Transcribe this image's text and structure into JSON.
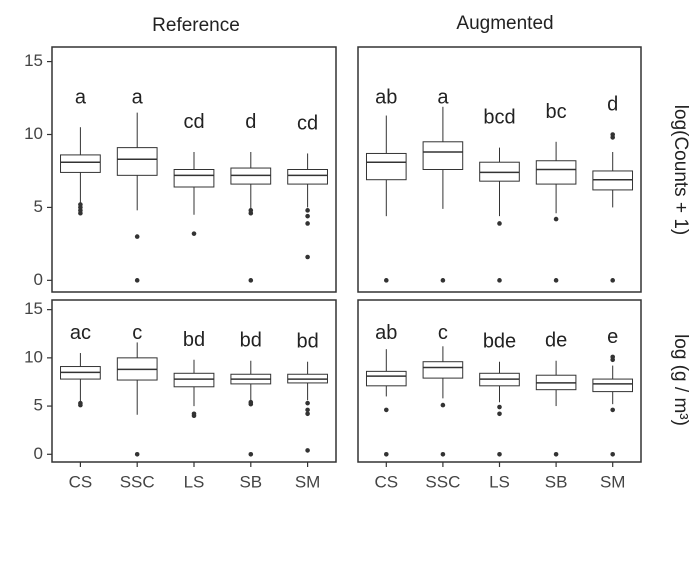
{
  "chart_data": {
    "type": "box",
    "columns": [
      "Reference",
      "Augmented"
    ],
    "rows": [
      "log(Counts + 1)",
      "log (g / m³)"
    ],
    "categories": [
      "CS",
      "SSC",
      "LS",
      "SB",
      "SM"
    ],
    "ylim": [
      -0.8,
      16
    ],
    "yticks": [
      0,
      5,
      10,
      15
    ],
    "color": "#333333",
    "panels": [
      {
        "row": 0,
        "col": 0,
        "boxes": [
          {
            "min": 5.3,
            "q1": 7.4,
            "median": 8.1,
            "q3": 8.6,
            "max": 10.5,
            "outliers": [
              4.6,
              4.8,
              5.0,
              5.2
            ],
            "letter": "a"
          },
          {
            "min": 4.8,
            "q1": 7.2,
            "median": 8.3,
            "q3": 9.1,
            "max": 11.5,
            "outliers": [
              3.0,
              0
            ],
            "letter": "a"
          },
          {
            "min": 4.5,
            "q1": 6.4,
            "median": 7.2,
            "q3": 7.6,
            "max": 8.8,
            "outliers": [
              3.2
            ],
            "letter": "cd"
          },
          {
            "min": 4.9,
            "q1": 6.6,
            "median": 7.2,
            "q3": 7.7,
            "max": 8.8,
            "outliers": [
              4.6,
              4.8,
              0
            ],
            "letter": "d"
          },
          {
            "min": 5.0,
            "q1": 6.6,
            "median": 7.2,
            "q3": 7.6,
            "max": 8.7,
            "outliers": [
              4.4,
              4.8,
              3.9,
              1.6
            ],
            "letter": "cd"
          }
        ]
      },
      {
        "row": 0,
        "col": 1,
        "boxes": [
          {
            "min": 4.4,
            "q1": 6.9,
            "median": 8.1,
            "q3": 8.7,
            "max": 11.3,
            "outliers": [
              0
            ],
            "letter": "ab"
          },
          {
            "min": 4.9,
            "q1": 7.6,
            "median": 8.8,
            "q3": 9.5,
            "max": 11.9,
            "outliers": [
              0
            ],
            "letter": "a"
          },
          {
            "min": 4.4,
            "q1": 6.8,
            "median": 7.4,
            "q3": 8.1,
            "max": 9.1,
            "outliers": [
              3.9,
              0
            ],
            "letter": "bcd"
          },
          {
            "min": 4.6,
            "q1": 6.6,
            "median": 7.6,
            "q3": 8.2,
            "max": 9.5,
            "outliers": [
              4.2,
              0
            ],
            "letter": "bc"
          },
          {
            "min": 5.0,
            "q1": 6.2,
            "median": 6.9,
            "q3": 7.5,
            "max": 8.8,
            "outliers": [
              9.8,
              10.0,
              0
            ],
            "letter": "d"
          }
        ]
      },
      {
        "row": 1,
        "col": 0,
        "boxes": [
          {
            "min": 5.5,
            "q1": 7.8,
            "median": 8.5,
            "q3": 9.1,
            "max": 10.5,
            "outliers": [
              5.1,
              5.3
            ],
            "letter": "ac"
          },
          {
            "min": 4.1,
            "q1": 7.7,
            "median": 8.8,
            "q3": 10.0,
            "max": 11.6,
            "outliers": [
              0
            ],
            "letter": "c"
          },
          {
            "min": 5.0,
            "q1": 7.0,
            "median": 7.8,
            "q3": 8.4,
            "max": 9.8,
            "outliers": [
              4.0,
              4.2
            ],
            "letter": "bd"
          },
          {
            "min": 5.6,
            "q1": 7.3,
            "median": 7.8,
            "q3": 8.3,
            "max": 9.7,
            "outliers": [
              5.2,
              5.4,
              0
            ],
            "letter": "bd"
          },
          {
            "min": 5.6,
            "q1": 7.4,
            "median": 7.8,
            "q3": 8.3,
            "max": 9.6,
            "outliers": [
              5.3,
              4.6,
              4.2,
              0.4
            ],
            "letter": "bd"
          }
        ]
      },
      {
        "row": 1,
        "col": 1,
        "boxes": [
          {
            "min": 6.0,
            "q1": 7.1,
            "median": 8.1,
            "q3": 8.6,
            "max": 10.9,
            "outliers": [
              4.6,
              0
            ],
            "letter": "ab"
          },
          {
            "min": 5.8,
            "q1": 7.9,
            "median": 9.0,
            "q3": 9.6,
            "max": 11.2,
            "outliers": [
              5.1,
              0
            ],
            "letter": "c"
          },
          {
            "min": 5.4,
            "q1": 7.1,
            "median": 7.8,
            "q3": 8.4,
            "max": 9.6,
            "outliers": [
              4.9,
              4.2,
              0
            ],
            "letter": "bde"
          },
          {
            "min": 5.0,
            "q1": 6.7,
            "median": 7.4,
            "q3": 8.2,
            "max": 9.7,
            "outliers": [
              0
            ],
            "letter": "de"
          },
          {
            "min": 5.2,
            "q1": 6.5,
            "median": 7.3,
            "q3": 7.8,
            "max": 9.2,
            "outliers": [
              4.6,
              9.8,
              10.1,
              0
            ],
            "letter": "e"
          }
        ]
      }
    ]
  }
}
